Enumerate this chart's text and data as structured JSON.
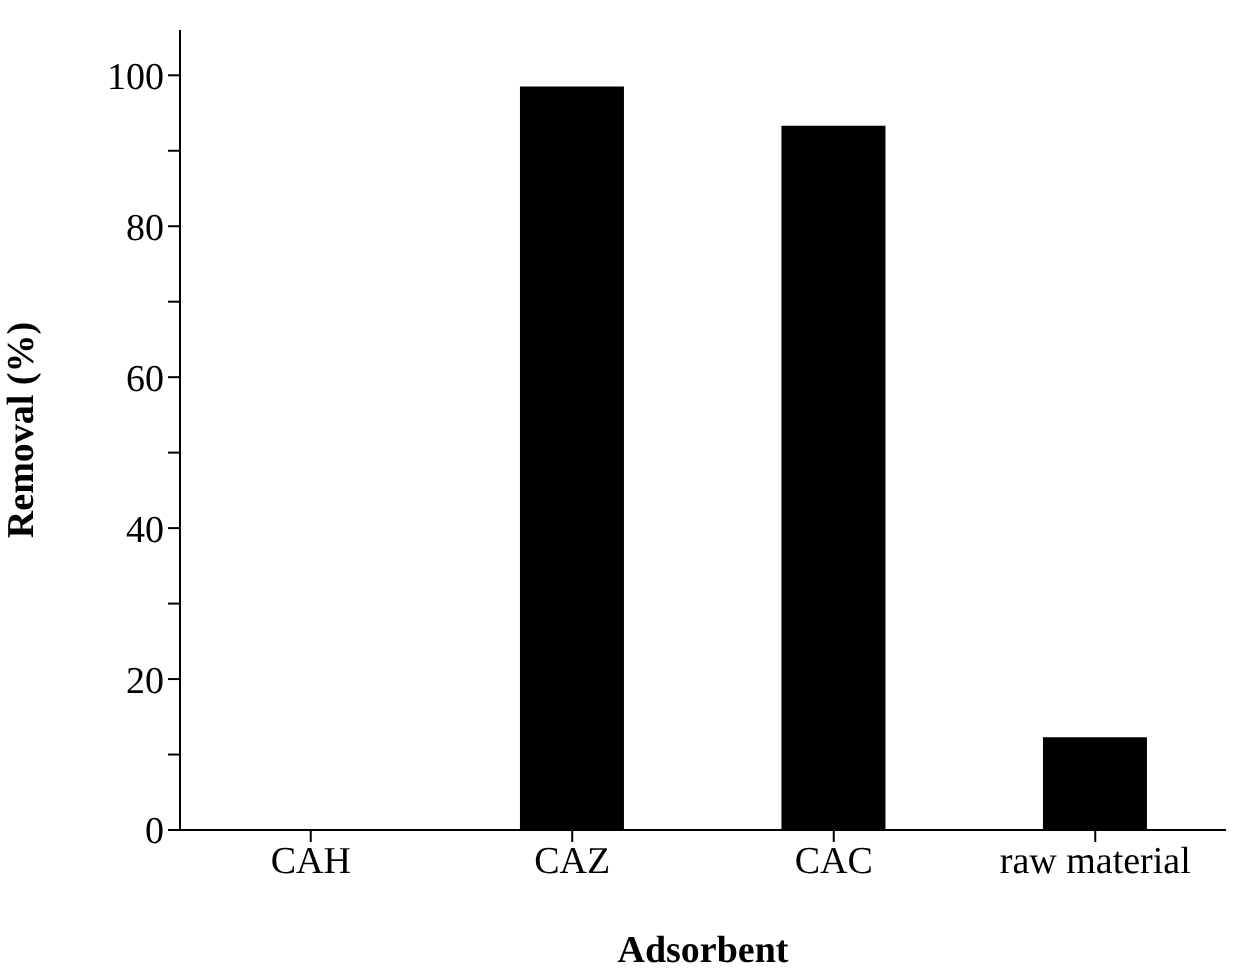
{
  "chart_data": {
    "type": "bar",
    "xlabel": "Adsorbent",
    "ylabel": "Removal (%)",
    "categories": [
      "CAH",
      "CAZ",
      "CAC",
      "raw material"
    ],
    "values": [
      0,
      98.5,
      93.3,
      12.3
    ],
    "color": "#000000",
    "ylim": [
      0,
      106
    ],
    "yticks": [
      0,
      {
        "value": 10,
        "label": null
      },
      20,
      {
        "value": 30,
        "label": null
      },
      40,
      {
        "value": 50,
        "label": null
      },
      60,
      {
        "value": 70,
        "label": null
      },
      80,
      {
        "value": 90,
        "label": null
      },
      100
    ],
    "grid": false,
    "legend": false
  }
}
